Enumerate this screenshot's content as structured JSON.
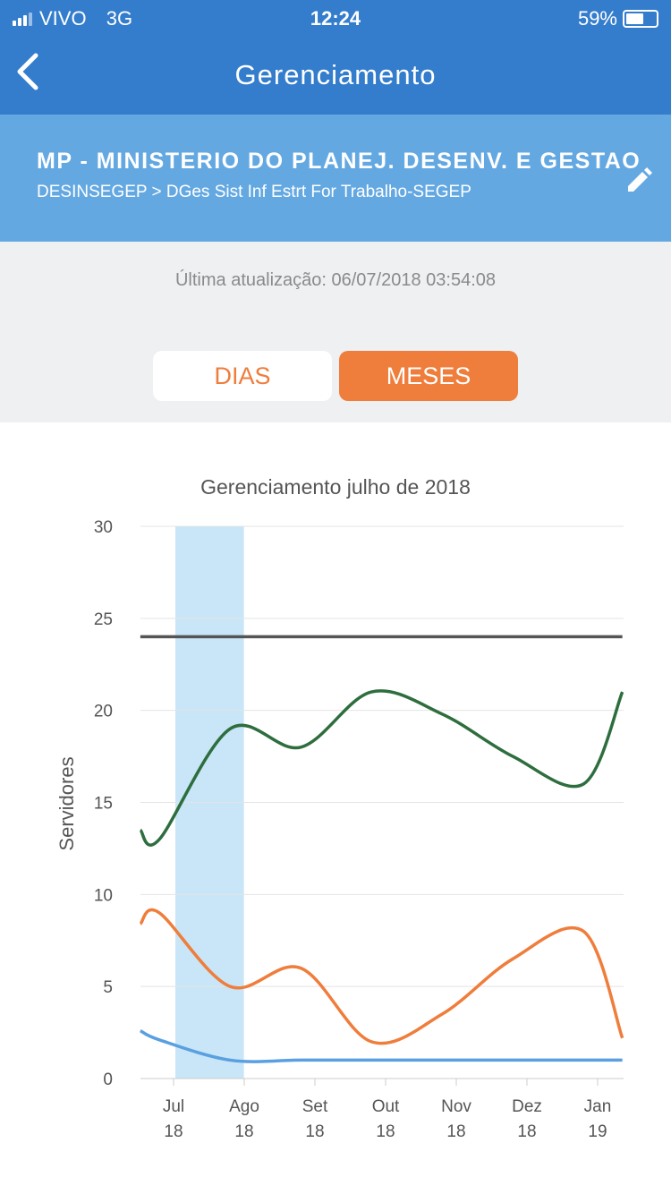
{
  "status_bar": {
    "carrier": "VIVO",
    "network": "3G",
    "time": "12:24",
    "battery": "59%",
    "battery_level": 0.59
  },
  "nav": {
    "title": "Gerenciamento",
    "back_icon": "chevron-left-icon"
  },
  "org": {
    "name": "MP - MINISTERIO DO PLANEJ. DESENV. E GESTAO",
    "path": "DESINSEGEP > DGes Sist Inf Estrt For Trabalho-SEGEP",
    "edit_icon": "pencil-icon"
  },
  "last_update": "Última atualização: 06/07/2018 03:54:08",
  "segments": {
    "days": "DIAS",
    "months": "MESES",
    "selected": "MESES"
  },
  "chart_data": {
    "type": "line",
    "title": "Gerenciamento julho de 2018",
    "ylabel": "Servidores",
    "ylim": [
      0,
      30
    ],
    "yticks": [
      "0",
      "5",
      "10",
      "15",
      "20",
      "25",
      "30"
    ],
    "categories": [
      [
        "Jul",
        "18"
      ],
      [
        "Ago",
        "18"
      ],
      [
        "Set",
        "18"
      ],
      [
        "Out",
        "18"
      ],
      [
        "Nov",
        "18"
      ],
      [
        "Dez",
        "18"
      ],
      [
        "Jan",
        "19"
      ]
    ],
    "x": [
      -0.47,
      -0.2,
      0.8,
      1.8,
      2.8,
      3.8,
      4.8,
      5.8,
      6.35
    ],
    "highlight": {
      "from": 0,
      "to": 0.97,
      "color": "#c8e6f7"
    },
    "grid": true,
    "series": [
      {
        "color": "#555555",
        "values": [
          24,
          24,
          24,
          24,
          24,
          24,
          24,
          24,
          24
        ]
      },
      {
        "color": "#2e6e3e",
        "values": [
          13.5,
          13,
          19,
          18,
          21,
          19.8,
          17.5,
          16,
          21
        ]
      },
      {
        "color": "#ef7d3c",
        "values": [
          8.4,
          9,
          5,
          6,
          2,
          3.5,
          6.5,
          8,
          2.2
        ]
      },
      {
        "color": "#5a9fe0",
        "values": [
          2.6,
          2.1,
          1,
          1,
          1,
          1,
          1,
          1,
          1
        ]
      }
    ]
  }
}
